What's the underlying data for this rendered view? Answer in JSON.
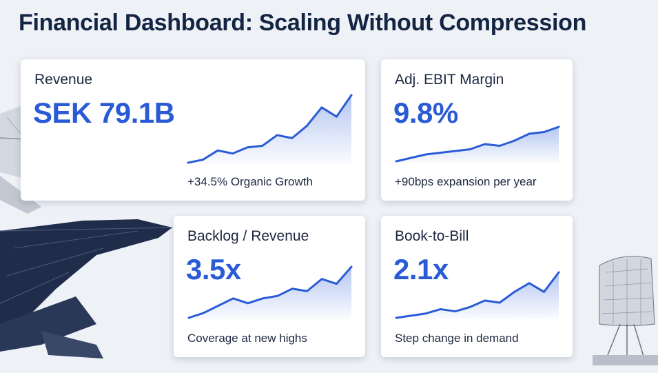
{
  "header": {
    "title": "Financial Dashboard: Scaling Without Compression"
  },
  "colors": {
    "accent": "#2a5bd6",
    "text": "#1c2740",
    "title": "#142544",
    "background": "#eef1f6"
  },
  "background_art": {
    "left": "fighter-jet-illustration",
    "right": "radar-tower-illustration"
  },
  "cards": [
    {
      "label": "Revenue",
      "value": "SEK 79.1B",
      "note": "+34.5% Organic Growth",
      "trend": [
        2,
        3,
        6,
        5,
        7,
        7.5,
        11,
        10,
        14,
        20,
        17,
        24
      ]
    },
    {
      "label": "Adj. EBIT Margin",
      "value": "9.8%",
      "note": "+90bps expansion per year",
      "trend": [
        3,
        4,
        5,
        5.5,
        6,
        6.5,
        8,
        7.5,
        9,
        11,
        11.5,
        13
      ]
    },
    {
      "label": "Backlog / Revenue",
      "value": "3.5x",
      "note": "Coverage at new highs",
      "trend": [
        2,
        3,
        4.5,
        6,
        5,
        6,
        6.5,
        8,
        7.5,
        10,
        9,
        12.5
      ]
    },
    {
      "label": "Book-to-Bill",
      "value": "2.1x",
      "note": "Step change in demand",
      "trend": [
        2,
        2.5,
        3,
        4,
        3.5,
        4.5,
        6,
        5.5,
        8,
        10,
        8,
        12.5
      ]
    }
  ]
}
